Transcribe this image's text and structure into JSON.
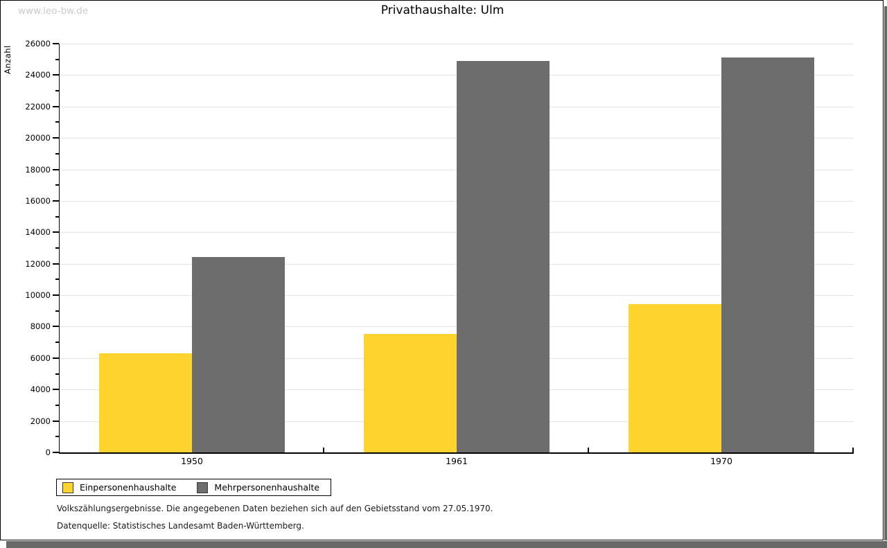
{
  "watermark": "www.leo-bw.de",
  "chart_data": {
    "type": "bar",
    "title": "Privathaushalte: Ulm",
    "ylabel": "Anzahl",
    "xlabel": "",
    "categories": [
      "1950",
      "1961",
      "1970"
    ],
    "series": [
      {
        "name": "Einpersonenhaushalte",
        "color": "#fcd42d",
        "values": [
          6290,
          7540,
          9420
        ]
      },
      {
        "name": "Mehrpersonenhaushalte",
        "color": "#6d6d6d",
        "values": [
          12420,
          24880,
          25110
        ]
      }
    ],
    "ylim": [
      0,
      26000
    ],
    "ytick_major": 2000,
    "ytick_minor": 1000,
    "grid": "horizontal-major",
    "legend_position": "bottom-left",
    "gridline_color": "#e4e4e4"
  },
  "footnotes": {
    "line1": "Volkszählungsergebnisse. Die angegebenen Daten beziehen sich auf den Gebietsstand vom 27.05.1970.",
    "line2": "Datenquelle: Statistisches Landesamt Baden-Württemberg."
  }
}
